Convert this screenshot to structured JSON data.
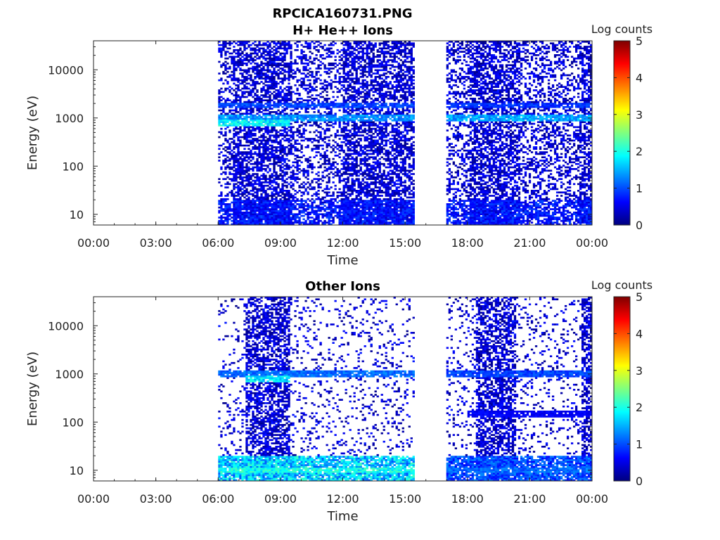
{
  "figure": {
    "title": "RPCICA160731.PNG"
  },
  "colors": {
    "colormap": [
      "#00007f",
      "#0000ff",
      "#007fff",
      "#00ffff",
      "#7fff7f",
      "#ffff00",
      "#ff7f00",
      "#ff0000",
      "#7f0000"
    ],
    "axes": "#222222"
  },
  "chart_data": [
    {
      "type": "heatmap",
      "title": "H+ He++ Ions",
      "xlabel": "Time",
      "ylabel": "Energy (eV)",
      "x_ticks": [
        "00:00",
        "03:00",
        "06:00",
        "09:00",
        "12:00",
        "15:00",
        "18:00",
        "21:00",
        "00:00"
      ],
      "x_range_hours": [
        0,
        24
      ],
      "y_scale": "log",
      "y_ticks": [
        "10",
        "100",
        "1000",
        "10000"
      ],
      "y_tick_values": [
        10,
        100,
        1000,
        10000
      ],
      "y_range": [
        6,
        40000
      ],
      "colorbar": {
        "title": "Log counts",
        "ticks": [
          "0",
          "1",
          "2",
          "3",
          "4",
          "5"
        ],
        "range": [
          0,
          5
        ]
      },
      "data_intervals_hours": [
        [
          6.0,
          15.5
        ],
        [
          17.0,
          24.0
        ]
      ],
      "dense_intervals_hours": [
        [
          6.7,
          9.6
        ],
        [
          12.0,
          15.5
        ],
        [
          18.1,
          20.5
        ],
        [
          23.4,
          24.0
        ]
      ],
      "bands": [
        {
          "energy_eV": 800,
          "start_hour": 6.0,
          "end_hour": 9.5,
          "log_counts": 1.9
        },
        {
          "energy_eV": 1000,
          "start_hour": 6.0,
          "end_hour": 15.5,
          "log_counts": 1.4
        },
        {
          "energy_eV": 1800,
          "start_hour": 6.0,
          "end_hour": 15.5,
          "log_counts": 1.0
        },
        {
          "energy_eV": 1000,
          "start_hour": 17.0,
          "end_hour": 24.0,
          "log_counts": 1.5
        },
        {
          "energy_eV": 1800,
          "start_hour": 17.0,
          "end_hour": 24.0,
          "log_counts": 0.9
        }
      ]
    },
    {
      "type": "heatmap",
      "title": "Other Ions",
      "xlabel": "Time",
      "ylabel": "Energy (eV)",
      "x_ticks": [
        "00:00",
        "03:00",
        "06:00",
        "09:00",
        "12:00",
        "15:00",
        "18:00",
        "21:00",
        "00:00"
      ],
      "x_range_hours": [
        0,
        24
      ],
      "y_scale": "log",
      "y_ticks": [
        "10",
        "100",
        "1000",
        "10000"
      ],
      "y_tick_values": [
        10,
        100,
        1000,
        10000
      ],
      "y_range": [
        6,
        40000
      ],
      "colorbar": {
        "title": "Log counts",
        "ticks": [
          "0",
          "1",
          "2",
          "3",
          "4",
          "5"
        ],
        "range": [
          0,
          5
        ]
      },
      "data_intervals_hours": [
        [
          6.0,
          15.5
        ],
        [
          17.0,
          24.0
        ]
      ],
      "dense_intervals_hours": [
        [
          7.3,
          9.5
        ],
        [
          18.4,
          20.3
        ],
        [
          23.5,
          24.0
        ]
      ],
      "bands": [
        {
          "energy_eV": 1000,
          "start_hour": 6.0,
          "end_hour": 15.5,
          "log_counts": 1.2
        },
        {
          "energy_eV": 800,
          "start_hour": 7.3,
          "end_hour": 9.5,
          "log_counts": 1.8
        },
        {
          "energy_eV": 1000,
          "start_hour": 17.0,
          "end_hour": 24.0,
          "log_counts": 1.0
        },
        {
          "energy_eV": 150,
          "start_hour": 18.0,
          "end_hour": 24.0,
          "log_counts": 0.6
        },
        {
          "energy_eV": 10,
          "start_hour": 6.0,
          "end_hour": 15.5,
          "log_counts": 2.0
        },
        {
          "energy_eV": 10,
          "start_hour": 17.0,
          "end_hour": 24.0,
          "log_counts": 1.2
        }
      ]
    }
  ]
}
